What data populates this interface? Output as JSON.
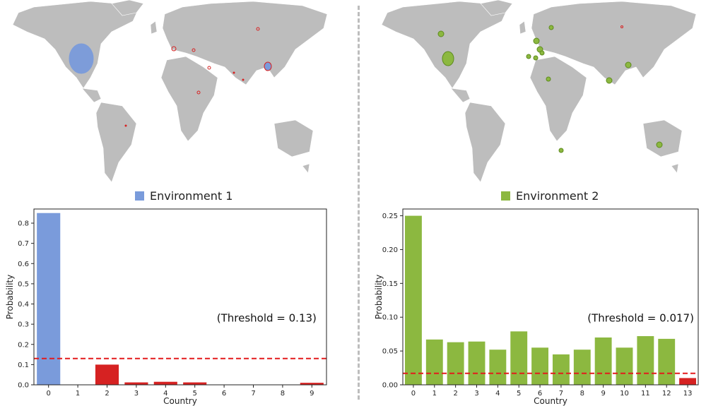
{
  "colors": {
    "env1": "#7a9bdb",
    "env2": "#8cb840",
    "below_threshold": "#d62222",
    "threshold_line": "#e31a1c",
    "land": "#bdbdbd",
    "divider": "#bdbdbd"
  },
  "panels": [
    {
      "legend_label": "Environment 1"
    },
    {
      "legend_label": "Environment 2"
    }
  ],
  "chart_data": [
    {
      "type": "bar",
      "categories": [
        "0",
        "1",
        "2",
        "3",
        "4",
        "5",
        "6",
        "7",
        "8",
        "9"
      ],
      "values": [
        0.85,
        0,
        0.1,
        0.012,
        0.015,
        0.012,
        0,
        0,
        0,
        0.01
      ],
      "xlabel": "Country",
      "ylabel": "Probability",
      "ylim": [
        0,
        0.87
      ],
      "yticks": [
        0.0,
        0.1,
        0.2,
        0.3,
        0.4,
        0.5,
        0.6,
        0.7,
        0.8
      ],
      "ytick_labels": [
        "0.0",
        "0.1",
        "0.2",
        "0.3",
        "0.4",
        "0.5",
        "0.6",
        "0.7",
        "0.8"
      ],
      "threshold": 0.13,
      "annotation": "(Threshold = 0.13)",
      "grid": false
    },
    {
      "type": "bar",
      "categories": [
        "0",
        "1",
        "2",
        "3",
        "4",
        "5",
        "6",
        "7",
        "8",
        "9",
        "10",
        "11",
        "12",
        "13"
      ],
      "values": [
        0.25,
        0.067,
        0.063,
        0.064,
        0.052,
        0.079,
        0.055,
        0.045,
        0.052,
        0.07,
        0.055,
        0.072,
        0.068,
        0.01
      ],
      "xlabel": "Country",
      "ylabel": "Probability",
      "ylim": [
        0,
        0.26
      ],
      "yticks": [
        0.0,
        0.05,
        0.1,
        0.15,
        0.2,
        0.25
      ],
      "ytick_labels": [
        "0.00",
        "0.05",
        "0.10",
        "0.15",
        "0.20",
        "0.25"
      ],
      "threshold": 0.017,
      "annotation": "(Threshold = 0.017)",
      "grid": false
    }
  ]
}
